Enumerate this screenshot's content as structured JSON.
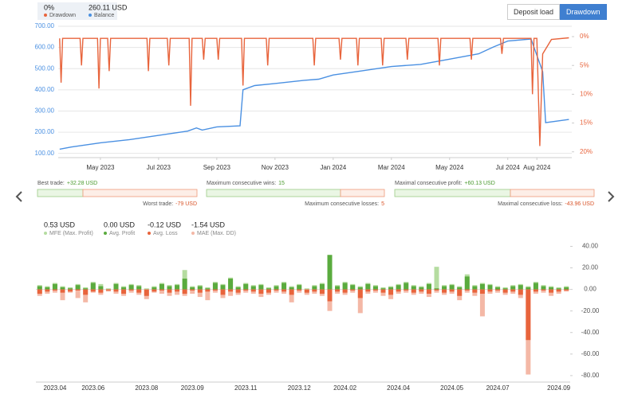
{
  "buttons": [
    "Deposit load",
    "Drawdown"
  ],
  "chart_data": [
    {
      "type": "line",
      "grid": true,
      "xlim": [
        3.55,
        21.2
      ],
      "xticks": [
        {
          "value": 5,
          "label": "May 2023"
        },
        {
          "value": 7,
          "label": "Jul 2023"
        },
        {
          "value": 9,
          "label": "Sep 2023"
        },
        {
          "value": 11,
          "label": "Nov 2023"
        },
        {
          "value": 13,
          "label": "Jan 2024"
        },
        {
          "value": 15,
          "label": "Mar 2024"
        },
        {
          "value": 17,
          "label": "May 2024"
        },
        {
          "value": 19,
          "label": "Jul 2024"
        },
        {
          "value": 20,
          "label": "Aug 2024"
        }
      ],
      "ylim": [
        80,
        700
      ],
      "yticks": [
        {
          "value": 100,
          "label": "100.00"
        },
        {
          "value": 200,
          "label": "200.00"
        },
        {
          "value": 300,
          "label": "300.00"
        },
        {
          "value": 400,
          "label": "400.00"
        },
        {
          "value": 500,
          "label": "500.00"
        },
        {
          "value": 600,
          "label": "600.00"
        },
        {
          "value": 700,
          "label": "700.00"
        }
      ],
      "y2lim": [
        21,
        -1.8
      ],
      "y2ticks": [
        {
          "value": 0,
          "label": "0%"
        },
        {
          "value": 5,
          "label": "5%"
        },
        {
          "value": 10,
          "label": "10%"
        },
        {
          "value": 15,
          "label": "15%"
        },
        {
          "value": 20,
          "label": "20%"
        }
      ],
      "series": [
        {
          "name": "Balance",
          "current": "260.11 USD",
          "color": "#4a90e2",
          "x": [
            3.6,
            4,
            5,
            6,
            7,
            8,
            8.3,
            8.5,
            9,
            9.8,
            9.9,
            10.3,
            11,
            12,
            12.5,
            13,
            14,
            15,
            16,
            17,
            18,
            18.5,
            19,
            19.8,
            20.2,
            20.3,
            21.1
          ],
          "values": [
            120,
            130,
            150,
            165,
            185,
            205,
            220,
            210,
            225,
            230,
            400,
            420,
            430,
            445,
            450,
            470,
            490,
            510,
            520,
            545,
            570,
            602,
            630,
            640,
            486,
            245,
            260
          ]
        },
        {
          "name": "Drawdown",
          "current": "0%",
          "color": "#e8643c",
          "axis": "y2",
          "x": [
            3.6,
            3.65,
            3.7,
            4.3,
            4.35,
            4.4,
            4.9,
            4.95,
            5.0,
            5.25,
            5.3,
            5.35,
            6.6,
            6.65,
            6.7,
            7.3,
            7.35,
            7.4,
            8.05,
            8.1,
            8.15,
            8.5,
            8.55,
            8.6,
            9.0,
            9.05,
            9.1,
            9.85,
            9.9,
            9.95,
            10.7,
            10.75,
            10.8,
            12.3,
            12.35,
            12.4,
            13.2,
            13.25,
            13.3,
            13.8,
            13.85,
            13.9,
            14.65,
            14.7,
            14.75,
            15.5,
            15.55,
            15.6,
            16.6,
            16.65,
            16.7,
            17.7,
            17.75,
            17.8,
            18.75,
            18.8,
            18.85,
            19.8,
            19.85,
            19.9,
            20.0,
            20.1,
            20.2,
            20.5,
            21.1
          ],
          "values": [
            0.3,
            8,
            0.3,
            0.3,
            5,
            0.3,
            0.3,
            9,
            0.3,
            0.3,
            6,
            0.3,
            0.3,
            6,
            0.3,
            0.3,
            5,
            0.3,
            0.3,
            12,
            0.3,
            0.3,
            4,
            0.3,
            0.3,
            4,
            0.3,
            0.3,
            8.5,
            0.3,
            0.3,
            5,
            0.3,
            0.3,
            5,
            0.3,
            0.3,
            4,
            0.3,
            0.3,
            5,
            0.3,
            0.3,
            5,
            0.3,
            0.3,
            4,
            0.3,
            0.3,
            5,
            0.3,
            0.3,
            4,
            0.3,
            0.3,
            3,
            0.3,
            0.3,
            10,
            0.3,
            0.3,
            19,
            3,
            0.5,
            0.2
          ]
        }
      ]
    },
    {
      "type": "bar",
      "grid": false,
      "ylim": [
        -86,
        47
      ],
      "yticks": [
        {
          "value": 40,
          "label": "40.00"
        },
        {
          "value": 20,
          "label": "20.00"
        },
        {
          "value": 0,
          "label": "0.00"
        },
        {
          "value": -20,
          "label": "-20.00"
        },
        {
          "value": -40,
          "label": "-40.00"
        },
        {
          "value": -60,
          "label": "-60.00"
        },
        {
          "value": -80,
          "label": "-80.00"
        }
      ],
      "categories": [
        null,
        null,
        "2023.04",
        null,
        null,
        null,
        null,
        "2023.06",
        null,
        null,
        null,
        null,
        null,
        null,
        "2023.08",
        null,
        null,
        null,
        null,
        null,
        "2023.09",
        null,
        null,
        null,
        null,
        null,
        null,
        "2023.11",
        null,
        null,
        null,
        null,
        null,
        null,
        "2023.12",
        null,
        null,
        null,
        null,
        null,
        "2024.02",
        null,
        null,
        null,
        null,
        null,
        null,
        "2024.04",
        null,
        null,
        null,
        null,
        null,
        null,
        "2024.05",
        null,
        null,
        null,
        null,
        null,
        "2024.07",
        null,
        null,
        null,
        null,
        null,
        null,
        null,
        "2024.09",
        null
      ],
      "series": [
        {
          "name": "MFE (Max. Profit)",
          "total": "0.53 USD",
          "color": "#b5dca0",
          "values": [
            4,
            3,
            6,
            3,
            2,
            5,
            2,
            7,
            5,
            1,
            6,
            3,
            5,
            4,
            1,
            3,
            6,
            4,
            5,
            18,
            3,
            4,
            2,
            7,
            5,
            11,
            3,
            6,
            4,
            5,
            2,
            4,
            7,
            3,
            5,
            1,
            4,
            6,
            32,
            4,
            7,
            5,
            3,
            6,
            4,
            2,
            3,
            5,
            7,
            4,
            3,
            6,
            21,
            4,
            5,
            3,
            14,
            4,
            6,
            5,
            3,
            2,
            4,
            5,
            3,
            7,
            4,
            3,
            2,
            3
          ]
        },
        {
          "name": "Avg. Profit",
          "total": "0.00 USD",
          "color": "#5aab3e",
          "values": [
            3,
            2,
            5,
            2,
            1,
            4,
            1,
            6,
            3,
            0,
            5,
            2,
            4,
            3,
            0,
            2,
            5,
            3,
            4,
            10,
            2,
            3,
            1,
            6,
            4,
            10,
            2,
            5,
            3,
            4,
            1,
            3,
            6,
            2,
            4,
            0,
            3,
            5,
            32,
            3,
            6,
            4,
            2,
            5,
            3,
            1,
            2,
            4,
            6,
            3,
            2,
            5,
            1,
            3,
            4,
            2,
            12,
            3,
            5,
            4,
            2,
            1,
            3,
            4,
            2,
            6,
            3,
            2,
            1,
            2
          ]
        },
        {
          "name": "Avg. Loss",
          "total": "-0.12 USD",
          "color": "#e8643c",
          "values": [
            -4,
            -2,
            -1,
            -3,
            -2,
            -1,
            -5,
            -2,
            -3,
            -1,
            -2,
            -4,
            -1,
            -3,
            -6,
            -2,
            -1,
            -3,
            -2,
            -4,
            -1,
            -3,
            -2,
            -1,
            -5,
            -2,
            -3,
            -1,
            -2,
            -4,
            -3,
            -1,
            -2,
            -5,
            -1,
            -3,
            -2,
            -4,
            -11,
            -2,
            -3,
            -1,
            -8,
            -2,
            -1,
            -3,
            -5,
            -2,
            -1,
            -3,
            -2,
            -4,
            -1,
            -3,
            -2,
            -6,
            -1,
            -3,
            -4,
            -2,
            -1,
            -3,
            -2,
            -5,
            -47,
            -2,
            -1,
            -3,
            -2,
            -1
          ]
        },
        {
          "name": "MAE (Max. DD)",
          "total": "-1.54 USD",
          "color": "#f4b8a6",
          "values": [
            -6,
            -4,
            -3,
            -10,
            -3,
            -8,
            -12,
            -3,
            -5,
            -2,
            -4,
            -6,
            -3,
            -5,
            -9,
            -3,
            -4,
            -6,
            -5,
            -6,
            -4,
            -7,
            -10,
            -3,
            -8,
            -6,
            -5,
            -3,
            -4,
            -7,
            -5,
            -3,
            -4,
            -12,
            -3,
            -5,
            -4,
            -6,
            -20,
            -4,
            -5,
            -3,
            -22,
            -4,
            -3,
            -6,
            -9,
            -4,
            -3,
            -5,
            -4,
            -7,
            -3,
            -5,
            -4,
            -10,
            -3,
            -6,
            -25,
            -4,
            -3,
            -5,
            -4,
            -8,
            -79,
            -4,
            -3,
            -6,
            -4,
            -2
          ]
        }
      ]
    }
  ],
  "stats": [
    {
      "left_label": "Best trade:",
      "left_value": "+32.28 USD",
      "right_label": "Worst trade:",
      "right_value": "-79 USD"
    },
    {
      "left_label": "Maximum consecutive wins:",
      "left_value": "15",
      "right_label": "Maximum consecutive losses:",
      "right_value": "5"
    },
    {
      "left_label": "Maximal consecutive profit:",
      "left_value": "+60.13 USD",
      "right_label": "Maximal consecutive loss:",
      "right_value": "-43.96 USD"
    }
  ]
}
